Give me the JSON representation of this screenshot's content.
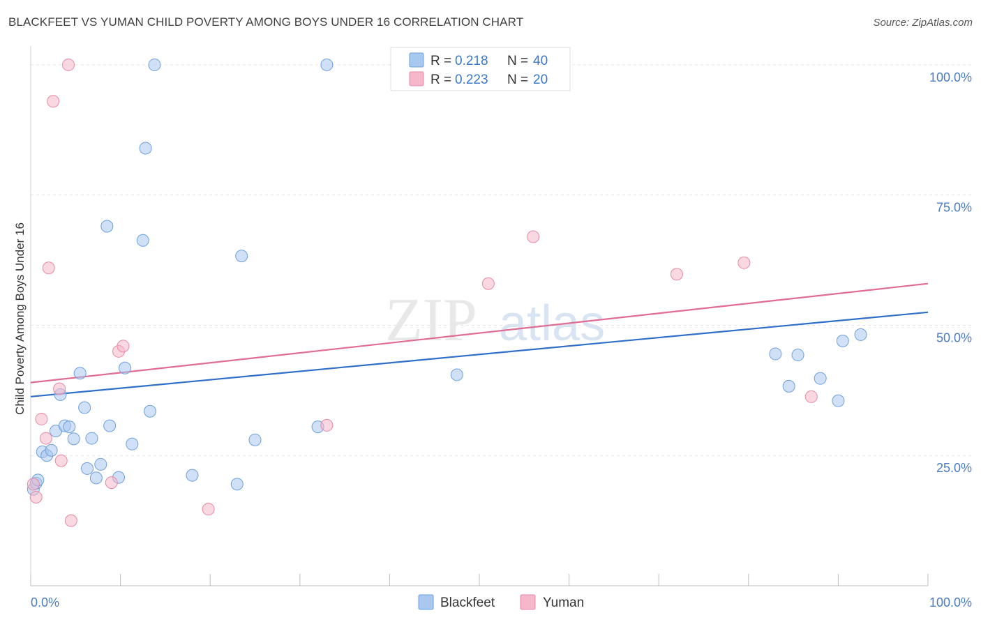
{
  "title": "BLACKFEET VS YUMAN CHILD POVERTY AMONG BOYS UNDER 16 CORRELATION CHART",
  "source": "Source: ZipAtlas.com",
  "watermark": {
    "zip": "ZIP",
    "atlas": "atlas"
  },
  "chart_data": {
    "type": "scatter",
    "ylabel": "Child Poverty Among Boys Under 16",
    "x_tick_labels": [
      "0.0%",
      "100.0%"
    ],
    "y_tick_labels": [
      "100.0%",
      "75.0%",
      "50.0%",
      "25.0%"
    ],
    "y_ticks": [
      100,
      75,
      50,
      25
    ],
    "xlim": [
      0,
      100
    ],
    "ylim": [
      0,
      102
    ],
    "grid": true,
    "legend_position": "top-center",
    "series": [
      {
        "name": "Blackfeet",
        "color": "#a9c8f0",
        "stroke": "#6d9fdc",
        "line_color": "#2f6fc9",
        "R_label": "R =",
        "R": "0.218",
        "N_label": "N =",
        "N": "40",
        "trend": [
          [
            0,
            36.3
          ],
          [
            100,
            52.5
          ]
        ],
        "points": [
          [
            0.3,
            18.5
          ],
          [
            0.6,
            19.7
          ],
          [
            0.8,
            20.3
          ],
          [
            1.3,
            25.7
          ],
          [
            1.8,
            25.0
          ],
          [
            2.3,
            26.0
          ],
          [
            2.8,
            29.7
          ],
          [
            3.3,
            36.7
          ],
          [
            3.8,
            30.7
          ],
          [
            4.3,
            30.5
          ],
          [
            4.8,
            28.2
          ],
          [
            5.5,
            40.8
          ],
          [
            6.0,
            34.2
          ],
          [
            6.3,
            22.5
          ],
          [
            6.8,
            28.3
          ],
          [
            7.3,
            20.7
          ],
          [
            7.8,
            23.3
          ],
          [
            8.5,
            69.0
          ],
          [
            8.8,
            30.7
          ],
          [
            9.8,
            20.8
          ],
          [
            10.5,
            41.8
          ],
          [
            11.3,
            27.2
          ],
          [
            12.5,
            66.3
          ],
          [
            12.8,
            84.0
          ],
          [
            13.3,
            33.5
          ],
          [
            13.8,
            100.0
          ],
          [
            18.0,
            21.2
          ],
          [
            23.0,
            19.5
          ],
          [
            23.5,
            63.3
          ],
          [
            25.0,
            28.0
          ],
          [
            32.0,
            30.5
          ],
          [
            33.0,
            100.0
          ],
          [
            47.5,
            40.5
          ],
          [
            83.0,
            44.5
          ],
          [
            84.5,
            38.3
          ],
          [
            85.5,
            44.3
          ],
          [
            88.0,
            39.8
          ],
          [
            90.0,
            35.5
          ],
          [
            90.5,
            47.0
          ],
          [
            92.5,
            48.2
          ]
        ]
      },
      {
        "name": "Yuman",
        "color": "#f5b8cb",
        "stroke": "#e888a6",
        "line_color": "#e06b93",
        "R_label": "R =",
        "R": "0.223",
        "N_label": "N =",
        "N": "20",
        "trend": [
          [
            0,
            39.0
          ],
          [
            100,
            58.0
          ]
        ],
        "points": [
          [
            0.3,
            19.5
          ],
          [
            0.6,
            17.0
          ],
          [
            1.2,
            32.0
          ],
          [
            1.7,
            28.3
          ],
          [
            2.0,
            61.0
          ],
          [
            2.5,
            93.0
          ],
          [
            3.2,
            37.8
          ],
          [
            3.4,
            24.0
          ],
          [
            4.2,
            100.0
          ],
          [
            4.5,
            12.5
          ],
          [
            9.0,
            19.8
          ],
          [
            9.8,
            45.0
          ],
          [
            10.3,
            46.0
          ],
          [
            19.8,
            14.7
          ],
          [
            33.0,
            30.8
          ],
          [
            51.0,
            58.0
          ],
          [
            56.0,
            67.0
          ],
          [
            72.0,
            59.8
          ],
          [
            79.5,
            62.0
          ],
          [
            87.0,
            36.3
          ]
        ]
      }
    ]
  }
}
